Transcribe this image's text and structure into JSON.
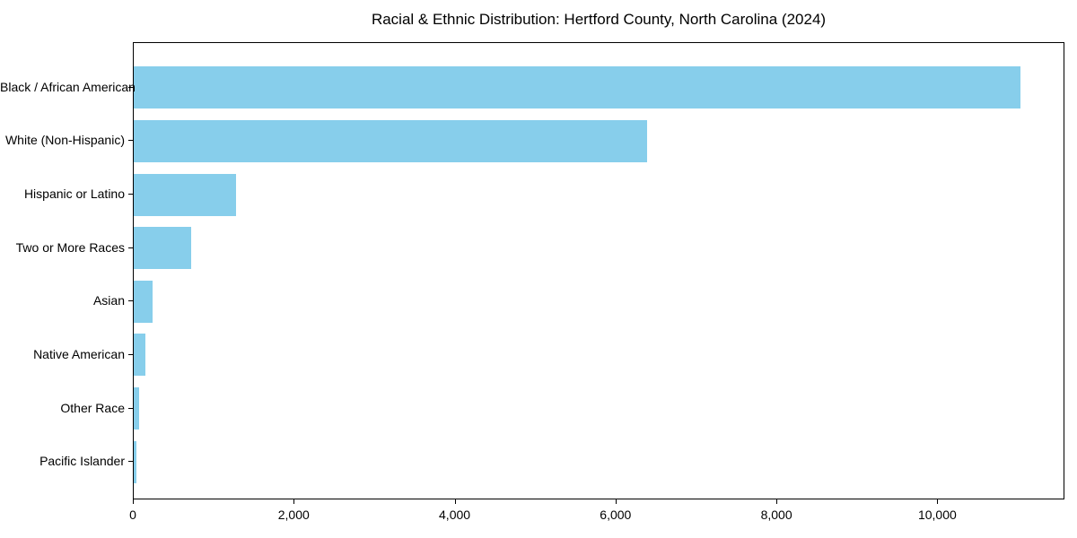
{
  "chart_data": {
    "type": "bar",
    "orientation": "horizontal",
    "title": "Racial & Ethnic Distribution: Hertford County, North Carolina (2024)",
    "categories": [
      "Black / African American",
      "White (Non-Hispanic)",
      "Hispanic or Latino",
      "Two or More Races",
      "Asian",
      "Native American",
      "Other Race",
      "Pacific Islander"
    ],
    "values": [
      11020,
      6380,
      1270,
      710,
      230,
      150,
      65,
      30
    ],
    "bar_color": "#87CEEB",
    "axis_color": "#000000",
    "background_color": "#ffffff",
    "xlabel": "",
    "ylabel": "",
    "xlim": [
      0,
      11580
    ],
    "xticks": {
      "values": [
        0,
        2000,
        4000,
        6000,
        8000,
        10000
      ],
      "labels": [
        "0",
        "2,000",
        "4,000",
        "6,000",
        "8,000",
        "10,000"
      ]
    },
    "grid": false,
    "legend": "none"
  }
}
